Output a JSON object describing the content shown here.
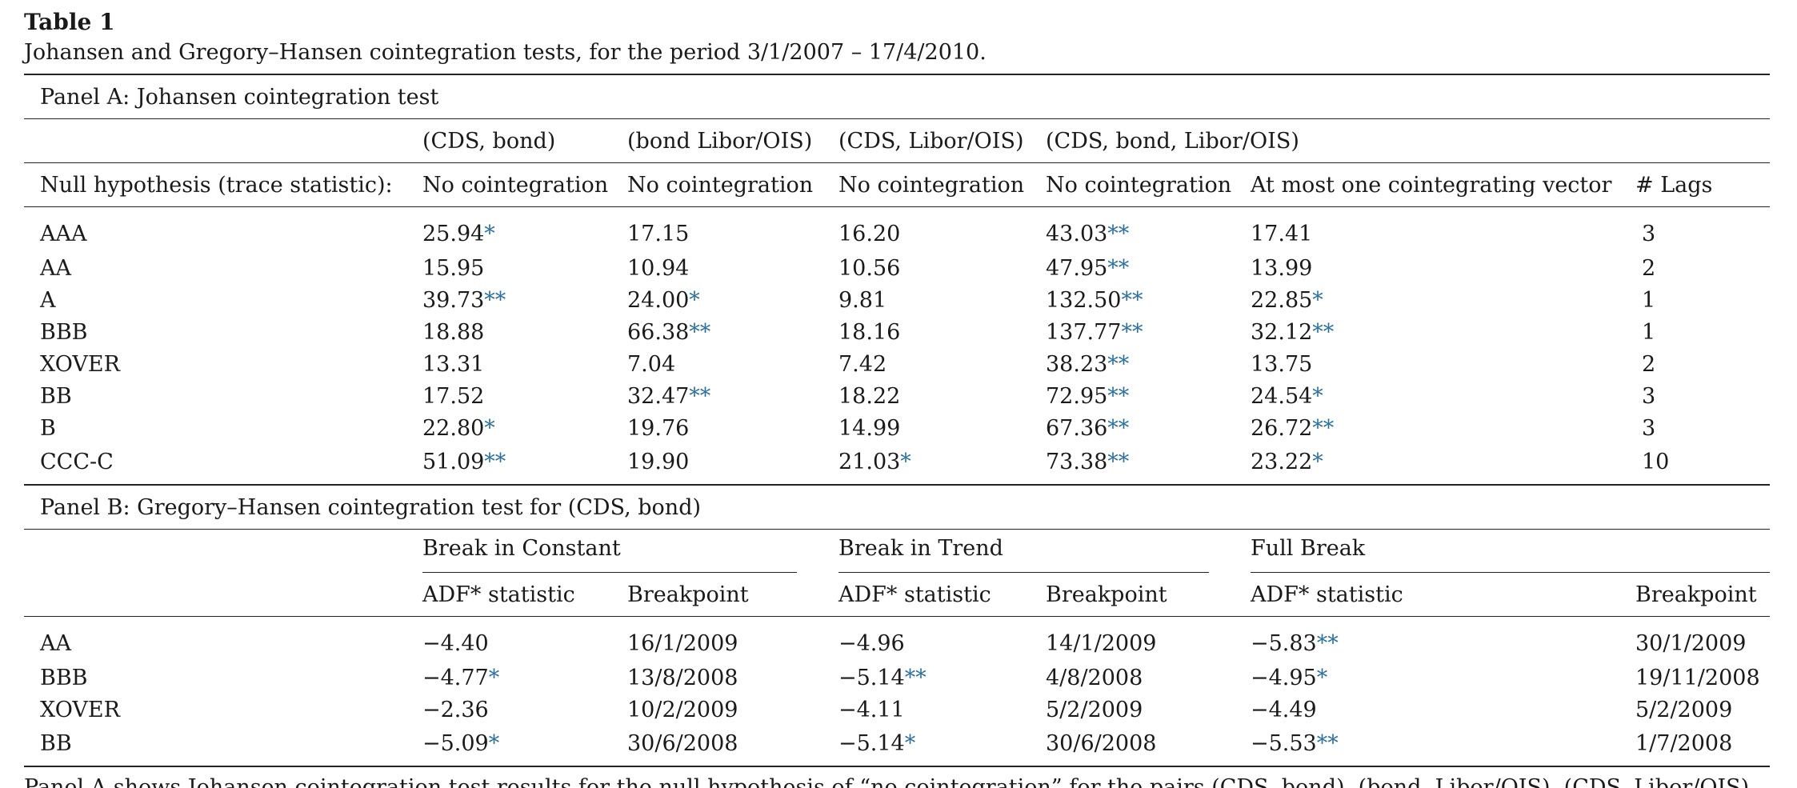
{
  "table_label": "Table 1",
  "caption": "Johansen and Gregory–Hansen cointegration tests, for the period 3/1/2007 – 17/4/2010.",
  "panel_a": {
    "title": "Panel A: Johansen cointegration test",
    "pair_headers": [
      "(CDS, bond)",
      "(bond Libor/OIS)",
      "(CDS, Libor/OIS)",
      "(CDS, bond, Libor/OIS)"
    ],
    "null_label": "Null hypothesis (trace statistic):",
    "null_headers": [
      "No cointegration",
      "No cointegration",
      "No cointegration",
      "No cointegration",
      "At most one cointegrating vector",
      "# Lags"
    ],
    "rows": [
      {
        "label": "AAA",
        "cells": [
          [
            "25.94",
            "*"
          ],
          [
            "17.15",
            ""
          ],
          [
            "16.20",
            ""
          ],
          [
            "43.03",
            "**"
          ],
          [
            "17.41",
            ""
          ]
        ],
        "lags": "3"
      },
      {
        "label": "AA",
        "cells": [
          [
            "15.95",
            ""
          ],
          [
            "10.94",
            ""
          ],
          [
            "10.56",
            ""
          ],
          [
            "47.95",
            "**"
          ],
          [
            "13.99",
            ""
          ]
        ],
        "lags": "2"
      },
      {
        "label": "A",
        "cells": [
          [
            "39.73",
            "**"
          ],
          [
            "24.00",
            "*"
          ],
          [
            "9.81",
            ""
          ],
          [
            "132.50",
            "**"
          ],
          [
            "22.85",
            "*"
          ]
        ],
        "lags": "1"
      },
      {
        "label": "BBB",
        "cells": [
          [
            "18.88",
            ""
          ],
          [
            "66.38",
            "**"
          ],
          [
            "18.16",
            ""
          ],
          [
            "137.77",
            "**"
          ],
          [
            "32.12",
            "**"
          ]
        ],
        "lags": "1"
      },
      {
        "label": "XOVER",
        "cells": [
          [
            "13.31",
            ""
          ],
          [
            "7.04",
            ""
          ],
          [
            "7.42",
            ""
          ],
          [
            "38.23",
            "**"
          ],
          [
            "13.75",
            ""
          ]
        ],
        "lags": "2"
      },
      {
        "label": "BB",
        "cells": [
          [
            "17.52",
            ""
          ],
          [
            "32.47",
            "**"
          ],
          [
            "18.22",
            ""
          ],
          [
            "72.95",
            "**"
          ],
          [
            "24.54",
            "*"
          ]
        ],
        "lags": "3"
      },
      {
        "label": "B",
        "cells": [
          [
            "22.80",
            "*"
          ],
          [
            "19.76",
            ""
          ],
          [
            "14.99",
            ""
          ],
          [
            "67.36",
            "**"
          ],
          [
            "26.72",
            "**"
          ]
        ],
        "lags": "3"
      },
      {
        "label": "CCC-C",
        "cells": [
          [
            "51.09",
            "**"
          ],
          [
            "19.90",
            ""
          ],
          [
            "21.03",
            "*"
          ],
          [
            "73.38",
            "**"
          ],
          [
            "23.22",
            "*"
          ]
        ],
        "lags": "10"
      }
    ]
  },
  "panel_b": {
    "title": "Panel B: Gregory–Hansen cointegration test for (CDS, bond)",
    "groups": [
      "Break in Constant",
      "Break in Trend",
      "Full Break"
    ],
    "sub_headers": [
      "ADF* statistic",
      "Breakpoint",
      "ADF* statistic",
      "Breakpoint",
      "ADF* statistic",
      "Breakpoint"
    ],
    "rows": [
      {
        "label": "AA",
        "cells": [
          [
            "−4.40",
            ""
          ],
          [
            "16/1/2009",
            ""
          ],
          [
            "−4.96",
            ""
          ],
          [
            "14/1/2009",
            ""
          ],
          [
            "−5.83",
            "**"
          ],
          [
            "30/1/2009",
            ""
          ]
        ]
      },
      {
        "label": "BBB",
        "cells": [
          [
            "−4.77",
            "*"
          ],
          [
            "13/8/2008",
            ""
          ],
          [
            "−5.14",
            "**"
          ],
          [
            "4/8/2008",
            ""
          ],
          [
            "−4.95",
            "*"
          ],
          [
            "19/11/2008",
            ""
          ]
        ]
      },
      {
        "label": "XOVER",
        "cells": [
          [
            "−2.36",
            ""
          ],
          [
            "10/2/2009",
            ""
          ],
          [
            "−4.11",
            ""
          ],
          [
            "5/2/2009",
            ""
          ],
          [
            "−4.49",
            ""
          ],
          [
            "5/2/2009",
            ""
          ]
        ]
      },
      {
        "label": "BB",
        "cells": [
          [
            "−5.09",
            "*"
          ],
          [
            "30/6/2008",
            ""
          ],
          [
            "−5.14",
            "*"
          ],
          [
            "30/6/2008",
            ""
          ],
          [
            "−5.53",
            "**"
          ],
          [
            "1/7/2008",
            ""
          ]
        ]
      }
    ]
  },
  "footer_text": "Panel A shows Johansen cointegration test results for the null hypothesis of “no cointegration” for the pairs (CDS, bond), (bond, Libor/OIS), (CDS, Libor/OIS)"
}
